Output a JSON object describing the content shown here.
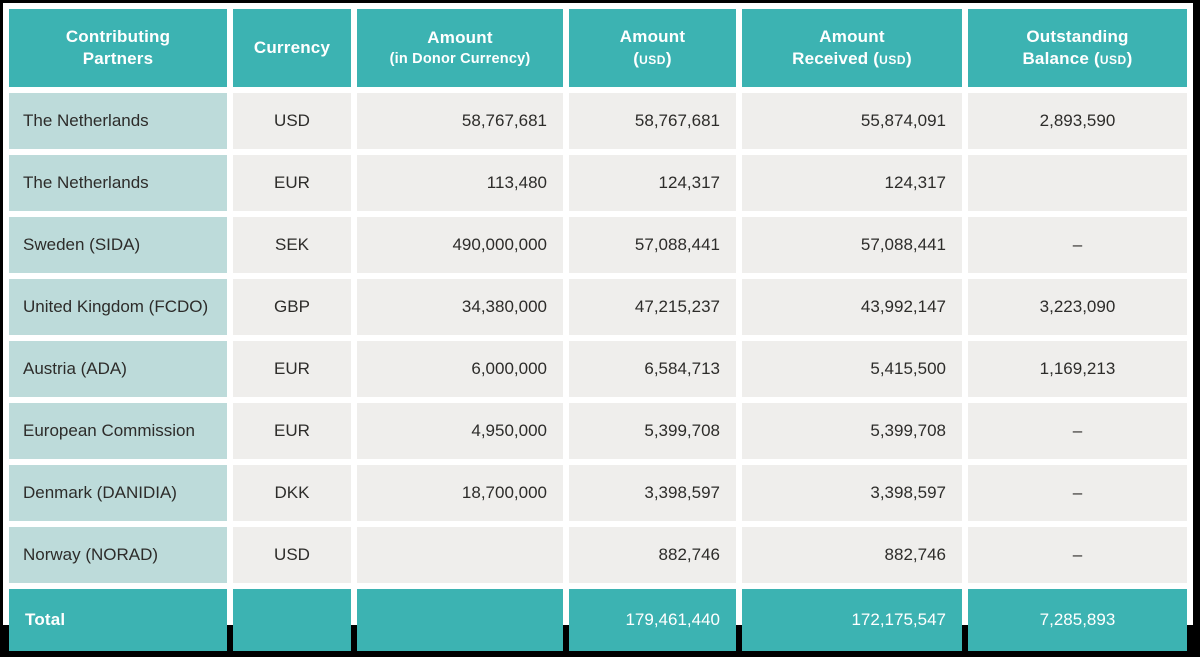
{
  "colors": {
    "header_teal": "#3cb3b2",
    "partner_light_teal": "#bddbda",
    "cell_gray": "#efeeec",
    "text_dark": "#2d2c2a",
    "header_text": "#ffffff",
    "frame_black": "#000000",
    "gap_white": "#ffffff"
  },
  "table": {
    "headers": [
      {
        "line1": "Contributing",
        "line2": "Partners"
      },
      {
        "line1": "Currency",
        "line2": ""
      },
      {
        "line1": "Amount",
        "line2": "(in Donor Currency)"
      },
      {
        "line1": "Amount",
        "line2": "(USD)"
      },
      {
        "line1": "Amount",
        "line2": "Received (USD)"
      },
      {
        "line1": "Outstanding",
        "line2": "Balance (USD)"
      }
    ],
    "rows": [
      {
        "partner": "The Netherlands",
        "currency": "USD",
        "amount_donor": "58,767,681",
        "amount_usd": "58,767,681",
        "received_usd": "55,874,091",
        "outstanding_usd": "2,893,590"
      },
      {
        "partner": "The Netherlands",
        "currency": "EUR",
        "amount_donor": "113,480",
        "amount_usd": "124,317",
        "received_usd": "124,317",
        "outstanding_usd": ""
      },
      {
        "partner": "Sweden (SIDA)",
        "currency": "SEK",
        "amount_donor": "490,000,000",
        "amount_usd": "57,088,441",
        "received_usd": "57,088,441",
        "outstanding_usd": "–"
      },
      {
        "partner": "United Kingdom (FCDO)",
        "currency": "GBP",
        "amount_donor": "34,380,000",
        "amount_usd": "47,215,237",
        "received_usd": "43,992,147",
        "outstanding_usd": "3,223,090"
      },
      {
        "partner": "Austria (ADA)",
        "currency": "EUR",
        "amount_donor": "6,000,000",
        "amount_usd": "6,584,713",
        "received_usd": "5,415,500",
        "outstanding_usd": "1,169,213"
      },
      {
        "partner": "European Commission",
        "currency": "EUR",
        "amount_donor": "4,950,000",
        "amount_usd": "5,399,708",
        "received_usd": "5,399,708",
        "outstanding_usd": "–"
      },
      {
        "partner": "Denmark (DANIDIA)",
        "currency": "DKK",
        "amount_donor": "18,700,000",
        "amount_usd": "3,398,597",
        "received_usd": "3,398,597",
        "outstanding_usd": "–"
      },
      {
        "partner": "Norway (NORAD)",
        "currency": "USD",
        "amount_donor": "",
        "amount_usd": "882,746",
        "received_usd": "882,746",
        "outstanding_usd": "–"
      }
    ],
    "total": {
      "label": "Total",
      "amount_donor": "",
      "currency": "",
      "amount_usd": "179,461,440",
      "received_usd": "172,175,547",
      "outstanding_usd": "7,285,893"
    }
  }
}
